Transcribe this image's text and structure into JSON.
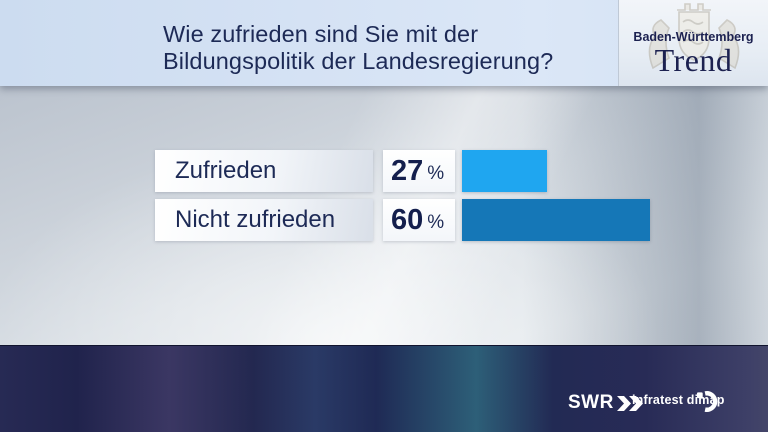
{
  "header": {
    "title_lines": [
      "Wie zufrieden sind Sie mit der",
      "Bildungspolitik der Landesregierung?"
    ]
  },
  "brand": {
    "region": "Baden-Württemberg",
    "name": "Trend",
    "crest_icon": "baden-wuerttemberg-coat-of-arms"
  },
  "chart_data": {
    "type": "bar",
    "orientation": "horizontal",
    "title": "Wie zufrieden sind Sie mit der Bildungspolitik der Landesregierung?",
    "categories": [
      "Zufrieden",
      "Nicht zufrieden"
    ],
    "values": [
      27,
      60
    ],
    "unit": "%",
    "bar_colors": [
      "#1fa6f0",
      "#1577b7"
    ],
    "value_label_position": "left-of-bar",
    "axis": {
      "min": 0,
      "max": 100,
      "gridlines": false,
      "tick_labels": "none"
    },
    "text_color": "#1d2a56"
  },
  "footer": {
    "broadcaster": "SWR",
    "source": "infratest dimap"
  },
  "colors": {
    "navy_text": "#1d2a56",
    "header_band": "#d3e1f3",
    "footer_bar": "#23254f",
    "bar_satisfied": "#1fa6f0",
    "bar_not_satisfied": "#1577b7"
  }
}
